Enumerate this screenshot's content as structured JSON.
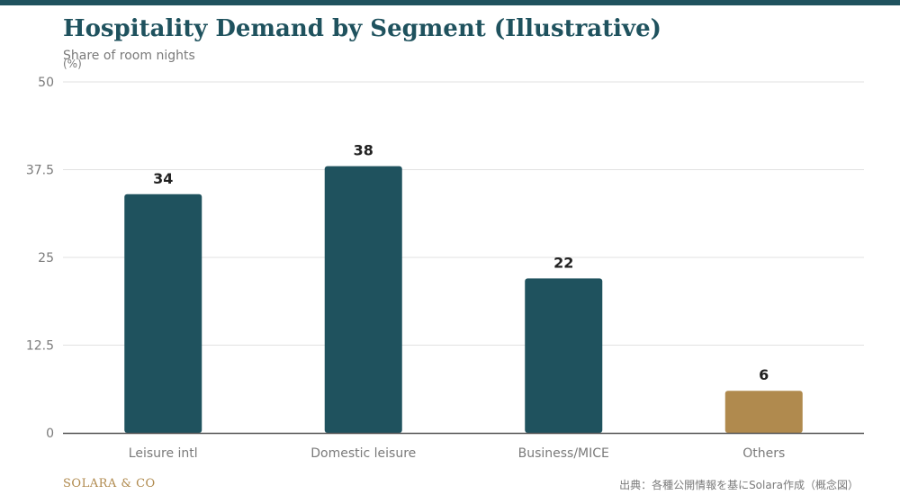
{
  "header": {
    "title": "Hospitality Demand by Segment (Illustrative)",
    "subtitle": "Share of room nights",
    "unit": "(%)"
  },
  "chart_data": {
    "type": "bar",
    "title": "Hospitality Demand by Segment (Illustrative)",
    "subtitle": "Share of room nights",
    "ylabel": "(%)",
    "xlabel": "",
    "categories": [
      "Leisure intl",
      "Domestic leisure",
      "Business/MICE",
      "Others"
    ],
    "values": [
      34,
      38,
      22,
      6
    ],
    "data_labels": [
      "34",
      "38",
      "22",
      "6"
    ],
    "ylim": [
      0,
      50
    ],
    "yticks": [
      0,
      12.5,
      25,
      37.5,
      50
    ],
    "ytick_labels": [
      "0",
      "12.5",
      "25",
      "37.5",
      "50"
    ],
    "grid": true,
    "legend": "none",
    "colors": {
      "primary": "#1f525e",
      "highlight": "#b08a4e",
      "highlight_category": "Others"
    }
  },
  "footer": {
    "brand": "SOLARA & CO",
    "source": "出典：各種公開情報を基にSolara作成（概念図）"
  }
}
